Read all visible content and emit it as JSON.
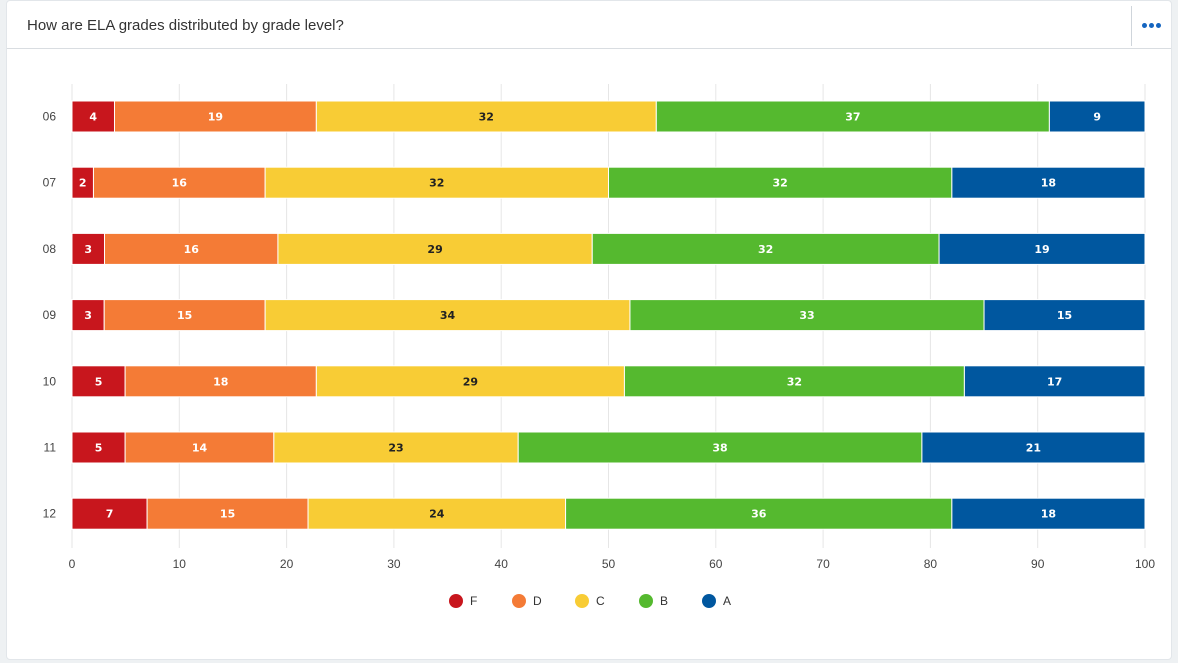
{
  "header": {
    "title": "How are ELA grades distributed by grade level?",
    "menu_icon": "more-horizontal-icon"
  },
  "chart_data": {
    "type": "bar",
    "orientation": "horizontal",
    "stacked": true,
    "title": "How are ELA grades distributed by grade level?",
    "xlabel": "",
    "ylabel": "",
    "categories": [
      "06",
      "07",
      "08",
      "09",
      "10",
      "11",
      "12"
    ],
    "series": [
      {
        "name": "F",
        "color": "#c8161d",
        "values": [
          4,
          2,
          3,
          3,
          5,
          5,
          7
        ]
      },
      {
        "name": "D",
        "color": "#f47b36",
        "values": [
          19,
          16,
          16,
          15,
          18,
          14,
          15
        ]
      },
      {
        "name": "C",
        "color": "#f8cc35",
        "values": [
          32,
          32,
          29,
          34,
          29,
          23,
          24
        ]
      },
      {
        "name": "B",
        "color": "#55b92f",
        "values": [
          37,
          32,
          32,
          33,
          32,
          38,
          36
        ]
      },
      {
        "name": "A",
        "color": "#00579f",
        "values": [
          9,
          18,
          19,
          15,
          17,
          21,
          18
        ]
      }
    ],
    "xlim": [
      0,
      100
    ],
    "xticks": [
      0,
      10,
      20,
      30,
      40,
      50,
      60,
      70,
      80,
      90,
      100
    ],
    "grid": true,
    "legend": "bottom-center"
  }
}
